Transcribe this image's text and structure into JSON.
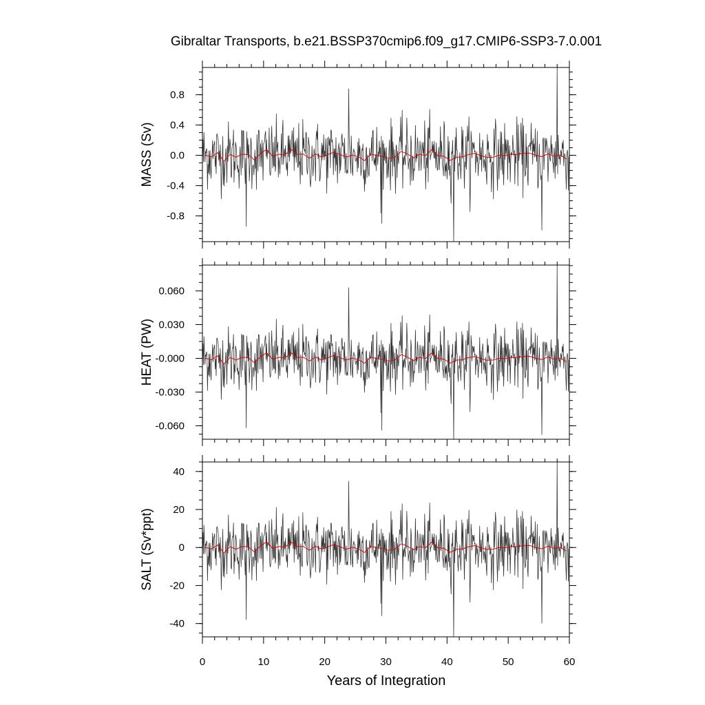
{
  "chart_data": {
    "type": "line",
    "title": "Gibraltar Transports, b.e21.BSSP370cmip6.f09_g17.CMIP6-SSP3-7.0.001",
    "xlabel": "Years of Integration",
    "xlim": [
      0,
      60
    ],
    "xticks": [
      0,
      10,
      20,
      30,
      40,
      50,
      60
    ],
    "xtick_labels": [
      "0",
      "10",
      "20",
      "30",
      "40",
      "50",
      "60"
    ],
    "grid": false,
    "legend": "none",
    "panels": [
      {
        "ylabel": "MASS (Sv)",
        "ylim": [
          -1.14,
          1.16
        ],
        "yticks": [
          0.8,
          0.4,
          0.0,
          -0.4,
          -0.8
        ],
        "ytick_labels": [
          "0.8",
          "0.4",
          "0.0",
          "-0.4",
          "-0.8"
        ],
        "amplitude": 0.22,
        "smooth_amplitude": 0.08,
        "extremes": [
          {
            "x": 7.2,
            "y": -0.94
          },
          {
            "x": 23.9,
            "y": 0.88
          },
          {
            "x": 29.3,
            "y": -0.9
          },
          {
            "x": 41.1,
            "y": -1.14
          },
          {
            "x": 55.5,
            "y": -0.99
          },
          {
            "x": 58.0,
            "y": 1.16
          }
        ]
      },
      {
        "ylabel": "HEAT (PW)",
        "ylim": [
          -0.072,
          0.083
        ],
        "yticks": [
          0.06,
          0.03,
          0.0,
          -0.03,
          -0.06
        ],
        "ytick_labels": [
          "0.060",
          "0.030",
          "-0.000",
          "-0.030",
          "-0.060"
        ],
        "amplitude": 0.014,
        "smooth_amplitude": 0.005,
        "extremes": [
          {
            "x": 7.2,
            "y": -0.062
          },
          {
            "x": 23.9,
            "y": 0.063
          },
          {
            "x": 29.3,
            "y": -0.064
          },
          {
            "x": 41.1,
            "y": -0.072
          },
          {
            "x": 55.5,
            "y": -0.068
          },
          {
            "x": 58.0,
            "y": 0.083
          }
        ]
      },
      {
        "ylabel": "SALT (Sv*ppt)",
        "ylim": [
          -47,
          45
        ],
        "yticks": [
          40,
          20,
          0,
          -20,
          -40
        ],
        "ytick_labels": [
          "40",
          "20",
          "0",
          "-20",
          "-40"
        ],
        "amplitude": 8.5,
        "smooth_amplitude": 3.0,
        "extremes": [
          {
            "x": 7.2,
            "y": -38
          },
          {
            "x": 23.9,
            "y": 35
          },
          {
            "x": 29.3,
            "y": -36
          },
          {
            "x": 41.1,
            "y": -47
          },
          {
            "x": 55.5,
            "y": -40
          },
          {
            "x": 58.0,
            "y": 45
          }
        ]
      }
    ],
    "series": [
      {
        "name": "",
        "color": "#333333",
        "kind": "monthly"
      },
      {
        "name": "",
        "color": "#e00000",
        "kind": "annual-mean"
      }
    ],
    "months": 720
  }
}
